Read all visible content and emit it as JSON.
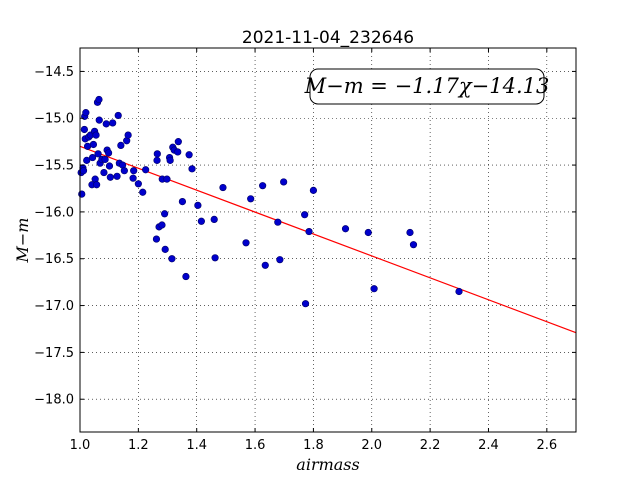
{
  "chart_data": {
    "type": "scatter",
    "title": "2021-11-04_232646",
    "xlabel": "airmass",
    "ylabel": "M−m",
    "xlim": [
      1.0,
      2.7
    ],
    "ylim": [
      -18.35,
      -14.25
    ],
    "y_inverted": true,
    "grid": true,
    "x_ticks": [
      1.0,
      1.2,
      1.4,
      1.6,
      1.8,
      2.0,
      2.2,
      2.4,
      2.6
    ],
    "x_tick_labels": [
      "1.0",
      "1.2",
      "1.4",
      "1.6",
      "1.8",
      "2.0",
      "2.2",
      "2.4",
      "2.6"
    ],
    "y_ticks": [
      -14.5,
      -15.0,
      -15.5,
      -16.0,
      -16.5,
      -17.0,
      -17.5,
      -18.0
    ],
    "y_tick_labels": [
      "−14.5",
      "−15.0",
      "−15.5",
      "−16.0",
      "−16.5",
      "−17.0",
      "−17.5",
      "−18.0"
    ],
    "annotation": "M−m = −1.17χ−14.13",
    "annotation_position": "top-right",
    "marker_color": "#0000cc",
    "fit_color": "#ff0000",
    "fit": {
      "slope": -1.17,
      "intercept": -14.13
    },
    "points": [
      [
        1.004,
        -15.58
      ],
      [
        1.006,
        -15.81
      ],
      [
        1.01,
        -15.53
      ],
      [
        1.012,
        -15.56
      ],
      [
        1.015,
        -15.12
      ],
      [
        1.016,
        -14.98
      ],
      [
        1.018,
        -15.22
      ],
      [
        1.02,
        -14.94
      ],
      [
        1.023,
        -15.45
      ],
      [
        1.026,
        -15.3
      ],
      [
        1.03,
        -15.2
      ],
      [
        1.036,
        -15.18
      ],
      [
        1.041,
        -15.71
      ],
      [
        1.043,
        -15.42
      ],
      [
        1.046,
        -15.28
      ],
      [
        1.05,
        -15.14
      ],
      [
        1.052,
        -15.65
      ],
      [
        1.055,
        -15.18
      ],
      [
        1.057,
        -15.71
      ],
      [
        1.06,
        -14.83
      ],
      [
        1.062,
        -15.38
      ],
      [
        1.065,
        -14.8
      ],
      [
        1.066,
        -15.02
      ],
      [
        1.069,
        -15.48
      ],
      [
        1.075,
        -15.44
      ],
      [
        1.082,
        -15.58
      ],
      [
        1.086,
        -15.44
      ],
      [
        1.09,
        -15.06
      ],
      [
        1.093,
        -15.34
      ],
      [
        1.098,
        -15.37
      ],
      [
        1.101,
        -15.51
      ],
      [
        1.104,
        -15.63
      ],
      [
        1.112,
        -15.05
      ],
      [
        1.127,
        -15.62
      ],
      [
        1.131,
        -14.97
      ],
      [
        1.135,
        -15.48
      ],
      [
        1.14,
        -15.29
      ],
      [
        1.146,
        -15.5
      ],
      [
        1.152,
        -15.56
      ],
      [
        1.16,
        -15.24
      ],
      [
        1.165,
        -15.18
      ],
      [
        1.182,
        -15.64
      ],
      [
        1.184,
        -15.56
      ],
      [
        1.2,
        -15.7
      ],
      [
        1.215,
        -15.79
      ],
      [
        1.225,
        -15.55
      ],
      [
        1.262,
        -16.29
      ],
      [
        1.264,
        -15.45
      ],
      [
        1.265,
        -15.38
      ],
      [
        1.271,
        -16.16
      ],
      [
        1.281,
        -16.14
      ],
      [
        1.282,
        -15.65
      ],
      [
        1.29,
        -16.02
      ],
      [
        1.292,
        -16.4
      ],
      [
        1.298,
        -15.65
      ],
      [
        1.307,
        -15.42
      ],
      [
        1.309,
        -15.45
      ],
      [
        1.315,
        -16.5
      ],
      [
        1.318,
        -15.31
      ],
      [
        1.323,
        -15.34
      ],
      [
        1.335,
        -15.36
      ],
      [
        1.337,
        -15.25
      ],
      [
        1.351,
        -15.89
      ],
      [
        1.363,
        -16.69
      ],
      [
        1.374,
        -15.39
      ],
      [
        1.384,
        -15.54
      ],
      [
        1.404,
        -15.93
      ],
      [
        1.416,
        -16.1
      ],
      [
        1.46,
        -16.08
      ],
      [
        1.463,
        -16.49
      ],
      [
        1.49,
        -15.74
      ],
      [
        1.569,
        -16.33
      ],
      [
        1.585,
        -15.86
      ],
      [
        1.626,
        -15.72
      ],
      [
        1.635,
        -16.57
      ],
      [
        1.678,
        -16.11
      ],
      [
        1.685,
        -16.51
      ],
      [
        1.698,
        -15.68
      ],
      [
        1.77,
        -16.03
      ],
      [
        1.773,
        -16.98
      ],
      [
        1.785,
        -16.21
      ],
      [
        1.8,
        -15.77
      ],
      [
        1.91,
        -16.18
      ],
      [
        1.988,
        -16.22
      ],
      [
        2.008,
        -16.82
      ],
      [
        2.131,
        -16.22
      ],
      [
        2.143,
        -16.35
      ],
      [
        2.299,
        -16.85
      ]
    ]
  }
}
